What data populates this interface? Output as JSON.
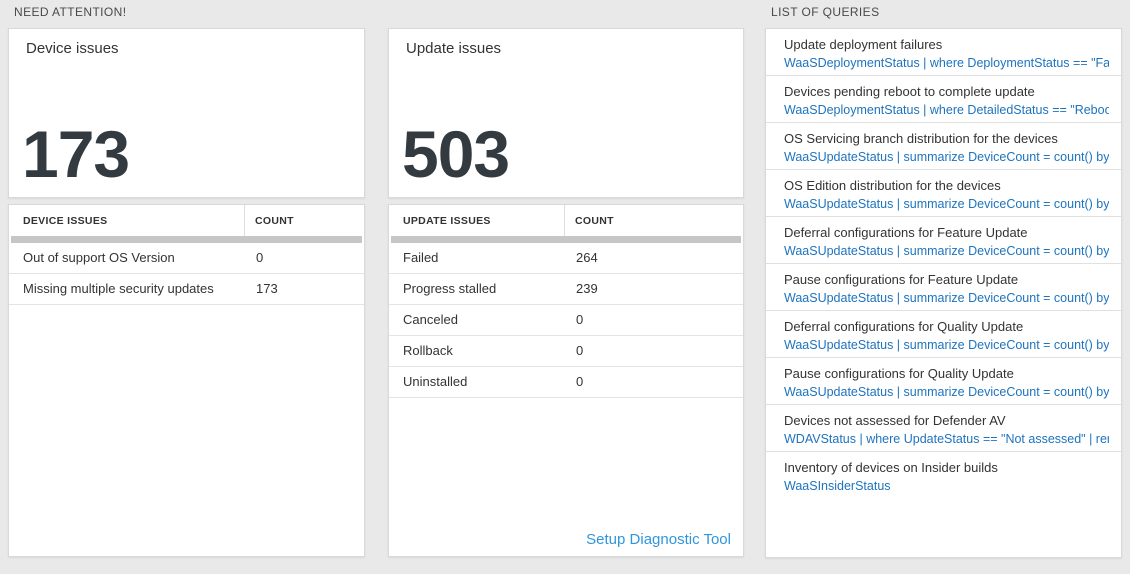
{
  "sections": {
    "need_attention_label": "NEED ATTENTION!",
    "queries_label": "LIST OF QUERIES"
  },
  "device_issues": {
    "title": "Device issues",
    "count": "173",
    "table": {
      "headers": [
        "DEVICE ISSUES",
        "COUNT"
      ],
      "rows": [
        {
          "label": "Out of support OS Version",
          "count": "0"
        },
        {
          "label": "Missing multiple security updates",
          "count": "173"
        }
      ]
    }
  },
  "update_issues": {
    "title": "Update issues",
    "count": "503",
    "table": {
      "headers": [
        "UPDATE ISSUES",
        "COUNT"
      ],
      "rows": [
        {
          "label": "Failed",
          "count": "264"
        },
        {
          "label": "Progress stalled",
          "count": "239"
        },
        {
          "label": "Canceled",
          "count": "0"
        },
        {
          "label": "Rollback",
          "count": "0"
        },
        {
          "label": "Uninstalled",
          "count": "0"
        }
      ]
    },
    "link_label": "Setup Diagnostic Tool"
  },
  "queries": {
    "items": [
      {
        "title": "Update deployment failures",
        "query": "WaaSDeploymentStatus | where DeploymentStatus == \"Failed\" |..."
      },
      {
        "title": "Devices pending reboot to complete update",
        "query": "WaaSDeploymentStatus | where DetailedStatus == \"Reboot pend..."
      },
      {
        "title": "OS Servicing branch distribution for the devices",
        "query": "WaaSUpdateStatus | summarize DeviceCount = count() by OSSer..."
      },
      {
        "title": "OS Edition distribution for the devices",
        "query": "WaaSUpdateStatus | summarize DeviceCount = count() by OSEdit..."
      },
      {
        "title": "Deferral configurations for Feature Update",
        "query": "WaaSUpdateStatus | summarize DeviceCount = count() by Featur..."
      },
      {
        "title": "Pause configurations for Feature Update",
        "query": "WaaSUpdateStatus | summarize DeviceCount = count() by Featur..."
      },
      {
        "title": "Deferral configurations for Quality Update",
        "query": "WaaSUpdateStatus | summarize DeviceCount = count() by Qualit..."
      },
      {
        "title": "Pause configurations for Quality Update",
        "query": "WaaSUpdateStatus | summarize DeviceCount = count() by Qualit..."
      },
      {
        "title": "Devices not assessed for Defender AV",
        "query": "WDAVStatus | where UpdateStatus == \"Not assessed\" | render ta..."
      },
      {
        "title": "Inventory of devices on Insider builds",
        "query": "WaaSInsiderStatus"
      }
    ]
  },
  "colors": {
    "page_background": "#e9e9e9",
    "card_background": "#ffffff",
    "card_border": "#d9d9d9",
    "number_text": "#333a40",
    "body_text": "#333333",
    "query_blue": "#1e73be",
    "link_blue": "#3195dd",
    "scrollbar_gray": "#c6c6c6"
  }
}
